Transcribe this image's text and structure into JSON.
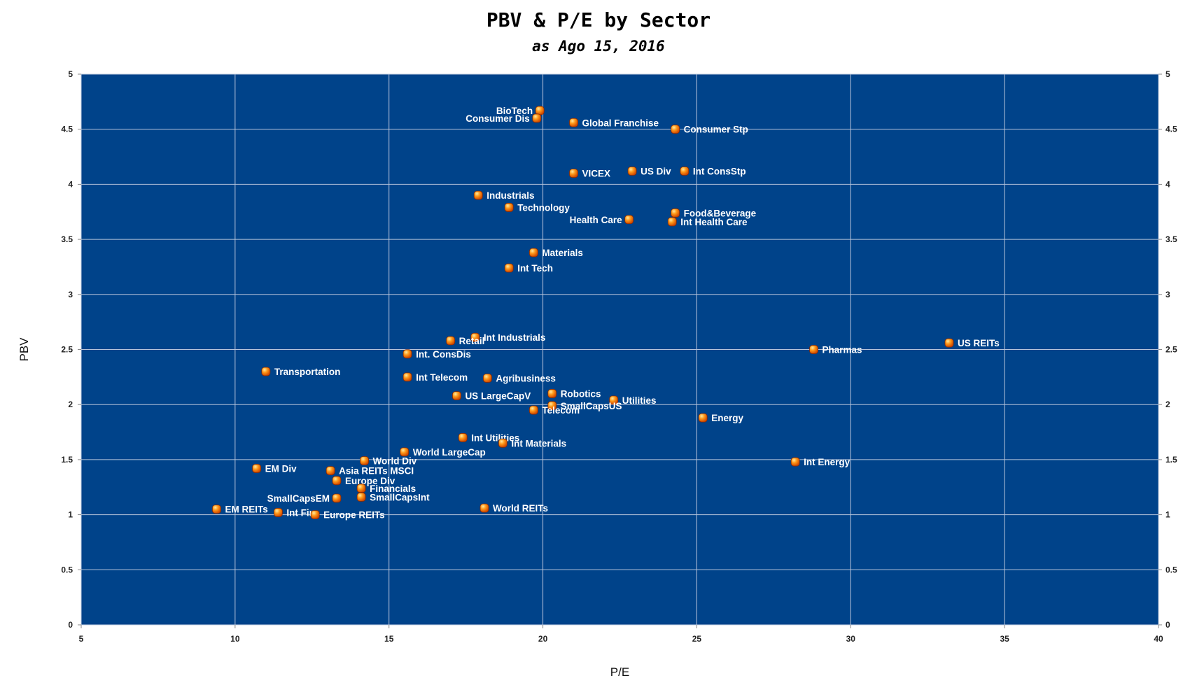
{
  "chart_data": {
    "type": "scatter",
    "title": "PBV & P/E by Sector",
    "subtitle": "as Ago 15, 2016",
    "xlabel": "P/E",
    "ylabel": "PBV",
    "xlim": [
      5,
      40
    ],
    "ylim": [
      0,
      5
    ],
    "x_ticks": [
      5,
      10,
      15,
      20,
      25,
      30,
      35,
      40
    ],
    "y_ticks": [
      0,
      0.5,
      1,
      1.5,
      2,
      2.5,
      3,
      3.5,
      4,
      4.5,
      5
    ],
    "y_tick_labels": [
      "0",
      "0.5",
      "1",
      "1.5",
      "2",
      "2.5",
      "3",
      "3.5",
      "4",
      "4.5",
      "5"
    ],
    "grid": true,
    "plot_background": "#00438a",
    "marker_color": "#f06000",
    "label_color": "#ffffff",
    "points": [
      {
        "label": "BioTech",
        "x": 19.9,
        "y": 4.67,
        "side": "left"
      },
      {
        "label": "Consumer Dis",
        "x": 19.8,
        "y": 4.6,
        "side": "left"
      },
      {
        "label": "Global Franchise",
        "x": 21.0,
        "y": 4.56,
        "side": "right"
      },
      {
        "label": "Consumer Stp",
        "x": 24.3,
        "y": 4.5,
        "side": "right"
      },
      {
        "label": "VICEX",
        "x": 21.0,
        "y": 4.1,
        "side": "right"
      },
      {
        "label": "US Div",
        "x": 22.9,
        "y": 4.12,
        "side": "right"
      },
      {
        "label": "Int ConsStp",
        "x": 24.6,
        "y": 4.12,
        "side": "right"
      },
      {
        "label": "Industrials",
        "x": 17.9,
        "y": 3.9,
        "side": "right"
      },
      {
        "label": "Technology",
        "x": 18.9,
        "y": 3.79,
        "side": "right"
      },
      {
        "label": "Food&Beverage",
        "x": 24.3,
        "y": 3.74,
        "side": "right"
      },
      {
        "label": "Health Care",
        "x": 22.8,
        "y": 3.68,
        "side": "left"
      },
      {
        "label": "Int Health Care",
        "x": 24.2,
        "y": 3.66,
        "side": "right"
      },
      {
        "label": "Materials",
        "x": 19.7,
        "y": 3.38,
        "side": "right"
      },
      {
        "label": "Int Tech",
        "x": 18.9,
        "y": 3.24,
        "side": "right"
      },
      {
        "label": "Int Industrials",
        "x": 17.8,
        "y": 2.61,
        "side": "right"
      },
      {
        "label": "Retail",
        "x": 17.0,
        "y": 2.58,
        "side": "right"
      },
      {
        "label": "US REITs",
        "x": 33.2,
        "y": 2.56,
        "side": "right"
      },
      {
        "label": "Pharmas",
        "x": 28.8,
        "y": 2.5,
        "side": "right"
      },
      {
        "label": "Int. ConsDis",
        "x": 15.6,
        "y": 2.46,
        "side": "right"
      },
      {
        "label": "Transportation",
        "x": 11.0,
        "y": 2.3,
        "side": "right"
      },
      {
        "label": "Int Telecom",
        "x": 15.6,
        "y": 2.25,
        "side": "right"
      },
      {
        "label": "Agribusiness",
        "x": 18.2,
        "y": 2.24,
        "side": "right"
      },
      {
        "label": "Robotics",
        "x": 20.3,
        "y": 2.1,
        "side": "right"
      },
      {
        "label": "US LargeCapV",
        "x": 17.2,
        "y": 2.08,
        "side": "right"
      },
      {
        "label": "Utilities",
        "x": 22.3,
        "y": 2.04,
        "side": "right"
      },
      {
        "label": "SmallCapsUS",
        "x": 20.3,
        "y": 1.99,
        "side": "right"
      },
      {
        "label": "Telecom",
        "x": 19.7,
        "y": 1.95,
        "side": "right"
      },
      {
        "label": "Energy",
        "x": 25.2,
        "y": 1.88,
        "side": "right"
      },
      {
        "label": "Int Utilities",
        "x": 17.4,
        "y": 1.7,
        "side": "right"
      },
      {
        "label": "Int Materials",
        "x": 18.7,
        "y": 1.65,
        "side": "right"
      },
      {
        "label": "World LargeCap",
        "x": 15.5,
        "y": 1.57,
        "side": "right"
      },
      {
        "label": "World Div",
        "x": 14.2,
        "y": 1.49,
        "side": "right"
      },
      {
        "label": "Int Energy",
        "x": 28.2,
        "y": 1.48,
        "side": "right"
      },
      {
        "label": "EM Div",
        "x": 10.7,
        "y": 1.42,
        "side": "right"
      },
      {
        "label": "Asia REITs MSCI",
        "x": 13.1,
        "y": 1.4,
        "side": "right"
      },
      {
        "label": "Europe Div",
        "x": 13.3,
        "y": 1.31,
        "side": "right"
      },
      {
        "label": "Financials",
        "x": 14.1,
        "y": 1.24,
        "side": "right"
      },
      {
        "label": "SmallCapsInt",
        "x": 14.1,
        "y": 1.16,
        "side": "right"
      },
      {
        "label": "SmallCapsEM",
        "x": 13.3,
        "y": 1.15,
        "side": "left"
      },
      {
        "label": "World REITs",
        "x": 18.1,
        "y": 1.06,
        "side": "right"
      },
      {
        "label": "EM REITs",
        "x": 9.4,
        "y": 1.05,
        "side": "right"
      },
      {
        "label": "Int Fin",
        "x": 11.4,
        "y": 1.02,
        "side": "right"
      },
      {
        "label": "Europe REITs",
        "x": 12.6,
        "y": 1.0,
        "side": "right"
      }
    ]
  }
}
